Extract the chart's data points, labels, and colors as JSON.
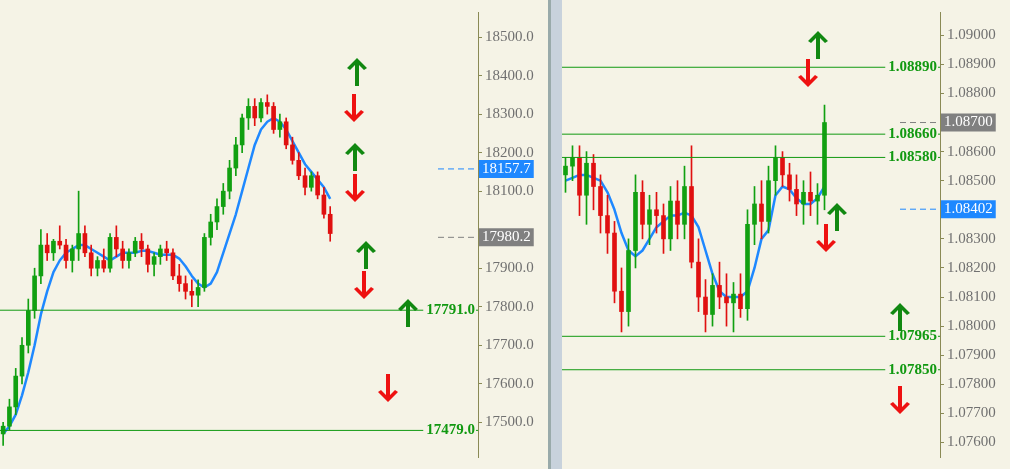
{
  "chart_data": [
    {
      "type": "candlestick",
      "categories": [
        null,
        null,
        null,
        null,
        null,
        null,
        null,
        null,
        null,
        null,
        null,
        null,
        null,
        null,
        null,
        null,
        null,
        null,
        null,
        null,
        null,
        null,
        null,
        null,
        null,
        null,
        null,
        null,
        null,
        null,
        null,
        null,
        null,
        null,
        null,
        null,
        null,
        null,
        null,
        null,
        null,
        null,
        null,
        null,
        null,
        null,
        null,
        null,
        null,
        null,
        null,
        null,
        null,
        null,
        null,
        null,
        null,
        null,
        null,
        null,
        null,
        null,
        null,
        null,
        null,
        null,
        null,
        null,
        null,
        null,
        null,
        null,
        null,
        null,
        null,
        null
      ],
      "ohlc": [
        [
          17470,
          17500,
          17440,
          17490
        ],
        [
          17490,
          17560,
          17480,
          17540
        ],
        [
          17540,
          17640,
          17520,
          17620
        ],
        [
          17620,
          17720,
          17600,
          17700
        ],
        [
          17700,
          17820,
          17680,
          17790
        ],
        [
          17790,
          17900,
          17770,
          17880
        ],
        [
          17880,
          18000,
          17860,
          17960
        ],
        [
          17960,
          17990,
          17920,
          17940
        ],
        [
          17940,
          17975,
          17920,
          17970
        ],
        [
          17970,
          18010,
          17950,
          17960
        ],
        [
          17960,
          17975,
          17900,
          17920
        ],
        [
          17920,
          17960,
          17890,
          17950
        ],
        [
          17950,
          18100,
          17920,
          17990
        ],
        [
          17990,
          18010,
          17930,
          17940
        ],
        [
          17940,
          17960,
          17880,
          17900
        ],
        [
          17900,
          17930,
          17880,
          17920
        ],
        [
          17920,
          17950,
          17890,
          17900
        ],
        [
          17900,
          17990,
          17890,
          17980
        ],
        [
          17980,
          18010,
          17930,
          17950
        ],
        [
          17950,
          17970,
          17900,
          17920
        ],
        [
          17920,
          17950,
          17900,
          17940
        ],
        [
          17940,
          17980,
          17930,
          17970
        ],
        [
          17970,
          17990,
          17930,
          17950
        ],
        [
          17950,
          17960,
          17890,
          17910
        ],
        [
          17910,
          17940,
          17880,
          17930
        ],
        [
          17930,
          17960,
          17910,
          17950
        ],
        [
          17950,
          17970,
          17920,
          17940
        ],
        [
          17940,
          17950,
          17870,
          17880
        ],
        [
          17880,
          17910,
          17840,
          17860
        ],
        [
          17860,
          17880,
          17820,
          17840
        ],
        [
          17840,
          17870,
          17800,
          17830
        ],
        [
          17830,
          17870,
          17800,
          17850
        ],
        [
          17850,
          17990,
          17840,
          17980
        ],
        [
          17980,
          18040,
          17960,
          18020
        ],
        [
          18020,
          18080,
          18000,
          18060
        ],
        [
          18060,
          18120,
          18040,
          18100
        ],
        [
          18100,
          18180,
          18080,
          18160
        ],
        [
          18160,
          18240,
          18140,
          18220
        ],
        [
          18220,
          18300,
          18200,
          18290
        ],
        [
          18290,
          18340,
          18260,
          18320
        ],
        [
          18320,
          18340,
          18270,
          18290
        ],
        [
          18290,
          18340,
          18280,
          18330
        ],
        [
          18330,
          18350,
          18300,
          18320
        ],
        [
          18320,
          18330,
          18250,
          18260
        ],
        [
          18260,
          18300,
          18240,
          18280
        ],
        [
          18280,
          18290,
          18210,
          18220
        ],
        [
          18220,
          18240,
          18170,
          18180
        ],
        [
          18180,
          18200,
          18130,
          18140
        ],
        [
          18140,
          18160,
          18090,
          18110
        ],
        [
          18110,
          18150,
          18100,
          18140
        ],
        [
          18140,
          18150,
          18080,
          18090
        ],
        [
          18090,
          18110,
          18030,
          18040
        ],
        [
          18040,
          18060,
          17970,
          17990
        ],
        null,
        null,
        null,
        null,
        null,
        null,
        null,
        null,
        null,
        null,
        null,
        null,
        null,
        null,
        null,
        null,
        null,
        null,
        null,
        null,
        null,
        null,
        null
      ],
      "series": [
        {
          "type": "line",
          "color": "#1e88ff",
          "values": [
            17470,
            17490,
            17520,
            17570,
            17630,
            17700,
            17780,
            17840,
            17890,
            17920,
            17940,
            17950,
            17960,
            17960,
            17950,
            17940,
            17930,
            17920,
            17930,
            17940,
            17940,
            17940,
            17945,
            17945,
            17940,
            17935,
            17935,
            17935,
            17925,
            17905,
            17880,
            17860,
            17850,
            17860,
            17890,
            17940,
            17990,
            18040,
            18100,
            18160,
            18220,
            18260,
            18280,
            18290,
            18280,
            18260,
            18230,
            18200,
            18170,
            18150,
            18130,
            18110,
            18080,
            null,
            null,
            null,
            null,
            null,
            null,
            null,
            null,
            null,
            null,
            null,
            null,
            null,
            null,
            null,
            null,
            null,
            null,
            null,
            null,
            null,
            null,
            null
          ]
        }
      ],
      "ylim": [
        17410,
        18565
      ],
      "yticks": [
        {
          "value": 17500,
          "label": "17500.0"
        },
        {
          "value": 17600,
          "label": "17600.0"
        },
        {
          "value": 17700,
          "label": "17700.0"
        },
        {
          "value": 17800,
          "label": "17800.0"
        },
        {
          "value": 17900,
          "label": "17900.0"
        },
        {
          "value": 18000,
          "label": null
        },
        {
          "value": 18100,
          "label": "18100.0"
        },
        {
          "value": 18200,
          "label": "18200.0"
        },
        {
          "value": 18300,
          "label": "18300.0"
        },
        {
          "value": 18400,
          "label": "18400.0"
        },
        {
          "value": 18500,
          "label": "18500.0"
        }
      ],
      "ref_lines": [
        {
          "axis": "y",
          "value": 17791,
          "label": "17791.0",
          "color": "#119911",
          "line_style": "solid"
        },
        {
          "axis": "y",
          "value": 17479,
          "label": "17479.0",
          "color": "#119911",
          "line_style": "solid"
        },
        {
          "axis": "y",
          "value": 18157.7,
          "label": "18157.7",
          "color": "#1e88ff",
          "line_style": "dashed"
        },
        {
          "axis": "y",
          "value": 17980.2,
          "label": "17980.2",
          "color": "#808080",
          "line_style": "dashed"
        }
      ],
      "tick_labels": "y",
      "grid": false,
      "legend": false,
      "marker": "none"
    },
    {
      "type": "candlestick",
      "categories": [
        null,
        null,
        null,
        null,
        null,
        null,
        null,
        null,
        null,
        null,
        null,
        null,
        null,
        null,
        null,
        null,
        null,
        null,
        null,
        null,
        null,
        null,
        null,
        null,
        null,
        null,
        null,
        null,
        null,
        null,
        null,
        null,
        null,
        null,
        null,
        null,
        null,
        null,
        null,
        null,
        null,
        null,
        null,
        null,
        null,
        null,
        null,
        null,
        null,
        null,
        null,
        null,
        null,
        null
      ],
      "ohlc": [
        [
          1.0852,
          1.0858,
          1.0846,
          1.0855
        ],
        [
          1.0855,
          1.0862,
          1.085,
          1.0858
        ],
        [
          1.0858,
          1.0862,
          1.0838,
          1.0845
        ],
        [
          1.0845,
          1.086,
          1.0835,
          1.0856
        ],
        [
          1.0856,
          1.0859,
          1.084,
          1.0848
        ],
        [
          1.0848,
          1.0852,
          1.0832,
          1.0838
        ],
        [
          1.0838,
          1.0845,
          1.0825,
          1.0832
        ],
        [
          1.0832,
          1.0836,
          1.0808,
          1.0812
        ],
        [
          1.0812,
          1.082,
          1.0798,
          1.0805
        ],
        [
          1.0805,
          1.083,
          1.08,
          1.0826
        ],
        [
          1.0826,
          1.0852,
          1.082,
          1.0846
        ],
        [
          1.0846,
          1.085,
          1.083,
          1.0835
        ],
        [
          1.0835,
          1.0845,
          1.0828,
          1.084
        ],
        [
          1.084,
          1.0846,
          1.0832,
          1.0838
        ],
        [
          1.0838,
          1.0842,
          1.0825,
          1.083
        ],
        [
          1.083,
          1.0848,
          1.0826,
          1.0843
        ],
        [
          1.0843,
          1.085,
          1.083,
          1.0835
        ],
        [
          1.0835,
          1.0855,
          1.083,
          1.0848
        ],
        [
          1.0848,
          1.0862,
          1.082,
          1.0822
        ],
        [
          1.0822,
          1.083,
          1.0805,
          1.081
        ],
        [
          1.081,
          1.0816,
          1.0798,
          1.0804
        ],
        [
          1.0804,
          1.0818,
          1.08,
          1.0814
        ],
        [
          1.0814,
          1.0822,
          1.0806,
          1.081
        ],
        [
          1.081,
          1.0818,
          1.08,
          1.0808
        ],
        [
          1.0808,
          1.0815,
          1.0798,
          1.0811
        ],
        [
          1.0811,
          1.0818,
          1.0803,
          1.0806
        ],
        [
          1.0806,
          1.084,
          1.0802,
          1.0835
        ],
        [
          1.0835,
          1.0848,
          1.0828,
          1.0842
        ],
        [
          1.0842,
          1.085,
          1.083,
          1.0836
        ],
        [
          1.0836,
          1.0855,
          1.0832,
          1.085
        ],
        [
          1.085,
          1.0862,
          1.0845,
          1.0858
        ],
        [
          1.0858,
          1.086,
          1.0848,
          1.0852
        ],
        [
          1.0852,
          1.0856,
          1.0843,
          1.0847
        ],
        [
          1.0847,
          1.0852,
          1.0838,
          1.0842
        ],
        [
          1.0842,
          1.085,
          1.0835,
          1.0846
        ],
        [
          1.0846,
          1.0853,
          1.0838,
          1.0843
        ],
        [
          1.0843,
          1.0849,
          1.0835,
          1.0845
        ],
        [
          1.0845,
          1.0876,
          1.084,
          1.087
        ],
        null,
        null,
        null,
        null,
        null,
        null,
        null,
        null,
        null,
        null,
        null,
        null,
        null,
        null,
        null,
        null
      ],
      "series": [
        {
          "type": "line",
          "color": "#1e88ff",
          "values": [
            1.085,
            1.0851,
            1.0852,
            1.0852,
            1.0851,
            1.085,
            1.0846,
            1.084,
            1.0832,
            1.0826,
            1.0824,
            1.0826,
            1.083,
            1.0834,
            1.0836,
            1.0838,
            1.0838,
            1.0839,
            1.0838,
            1.0834,
            1.0826,
            1.0818,
            1.0812,
            1.081,
            1.081,
            1.081,
            1.0812,
            1.082,
            1.083,
            1.0833,
            1.0845,
            1.0848,
            1.0847,
            1.0844,
            1.0842,
            1.0842,
            1.0844,
            1.0848,
            null,
            null,
            null,
            null,
            null,
            null,
            null,
            null,
            null,
            null,
            null,
            null,
            null,
            null,
            null,
            null
          ]
        }
      ],
      "ylim": [
        1.0755,
        1.0908
      ],
      "yticks": [
        {
          "value": 1.076,
          "label": "1.07600"
        },
        {
          "value": 1.077,
          "label": "1.07700"
        },
        {
          "value": 1.078,
          "label": "1.07800"
        },
        {
          "value": 1.079,
          "label": "1.07900"
        },
        {
          "value": 1.08,
          "label": "1.08000"
        },
        {
          "value": 1.081,
          "label": "1.08100"
        },
        {
          "value": 1.082,
          "label": "1.08200"
        },
        {
          "value": 1.083,
          "label": "1.08300"
        },
        {
          "value": 1.084,
          "label": null
        },
        {
          "value": 1.085,
          "label": "1.08500"
        },
        {
          "value": 1.086,
          "label": "1.08600"
        },
        {
          "value": 1.087,
          "label": null
        },
        {
          "value": 1.088,
          "label": "1.08800"
        },
        {
          "value": 1.089,
          "label": "1.08900"
        },
        {
          "value": 1.09,
          "label": "1.09000"
        }
      ],
      "ref_lines": [
        {
          "axis": "y",
          "value": 1.0889,
          "label": "1.08890",
          "color": "#119911",
          "line_style": "solid"
        },
        {
          "axis": "y",
          "value": 1.0866,
          "label": "1.08660",
          "color": "#119911",
          "line_style": "solid"
        },
        {
          "axis": "y",
          "value": 1.0858,
          "label": "1.08580",
          "color": "#119911",
          "line_style": "solid"
        },
        {
          "axis": "y",
          "value": 1.07965,
          "label": "1.07965",
          "color": "#119911",
          "line_style": "solid"
        },
        {
          "axis": "y",
          "value": 1.0785,
          "label": "1.07850",
          "color": "#119911",
          "line_style": "solid"
        },
        {
          "axis": "y",
          "value": 1.087,
          "label": "1.08700",
          "color": "#808080",
          "line_style": "dashed"
        },
        {
          "axis": "y",
          "value": 1.08402,
          "label": "1.08402",
          "color": "#1e88ff",
          "line_style": "dashed"
        }
      ],
      "tick_labels": "y",
      "grid": false,
      "legend": false,
      "marker": "none"
    }
  ]
}
